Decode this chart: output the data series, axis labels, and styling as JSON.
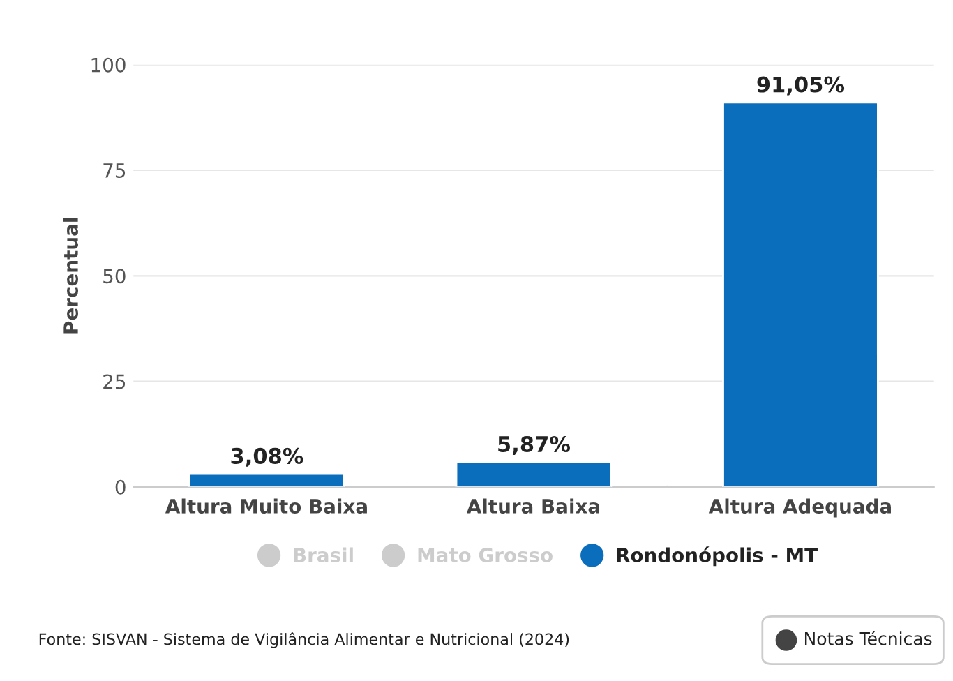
{
  "chart_data": {
    "type": "bar",
    "ylabel": "Percentual",
    "categories": [
      "Altura Muito Baixa",
      "Altura Baixa",
      "Altura Adequada"
    ],
    "series": [
      {
        "name": "Brasil",
        "color": "#cccccc",
        "values": [
          null,
          null,
          null
        ]
      },
      {
        "name": "Mato Grosso",
        "color": "#cccccc",
        "values": [
          null,
          null,
          null
        ]
      },
      {
        "name": "Rondonópolis - MT",
        "color": "#0a6ebd",
        "values": [
          3.08,
          5.87,
          91.05
        ],
        "value_labels": [
          "3,08%",
          "5,87%",
          "91,05%"
        ]
      }
    ],
    "ylim": [
      0,
      100
    ],
    "yticks": [
      0,
      25,
      50,
      75,
      100
    ],
    "grid": "y",
    "legend": "bottom",
    "annotations": [
      "Fonte: SISVAN - Sistema de Vigilância Alimentar e Nutricional (2024)",
      "Notas Técnicas"
    ]
  }
}
